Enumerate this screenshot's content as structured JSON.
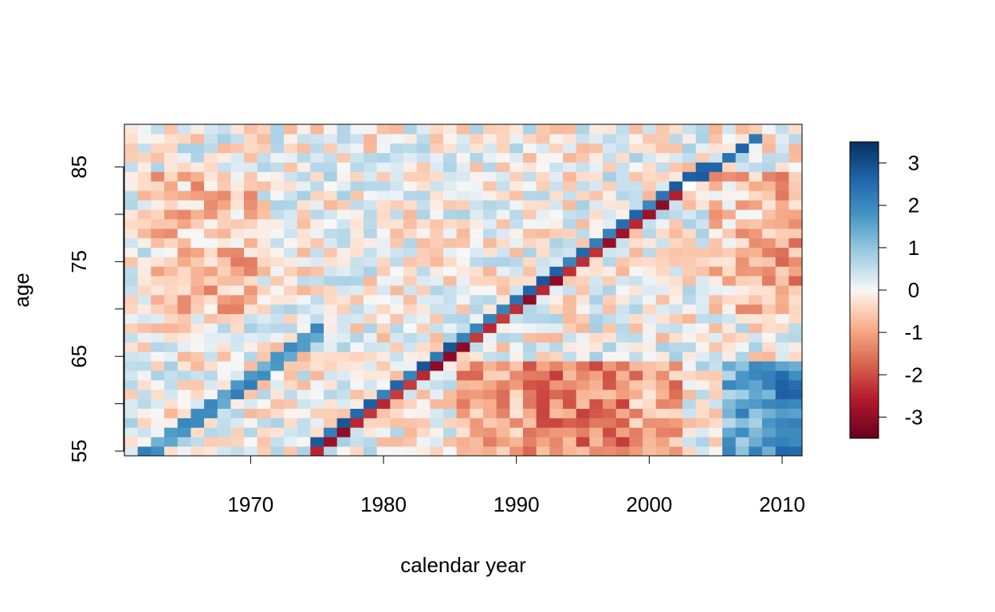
{
  "chart_data": {
    "type": "heatmap",
    "title": "",
    "xlabel": "calendar year",
    "ylabel": "age",
    "x_range": [
      1961,
      2011
    ],
    "y_range": [
      55,
      89
    ],
    "x_ticks": [
      1970,
      1980,
      1990,
      2000,
      2010
    ],
    "x_tick_labels": [
      "1970",
      "1980",
      "1990",
      "2000",
      "2010"
    ],
    "y_ticks": [
      55,
      65,
      75,
      85
    ],
    "y_tick_labels": [
      "55",
      "65",
      "75",
      "85"
    ],
    "y_minor_ticks": [
      60,
      70,
      80
    ],
    "color_scale": {
      "min": -3.5,
      "max": 3.5,
      "ticks": [
        3,
        2,
        1,
        0,
        -1,
        -2,
        -3
      ],
      "tick_labels": [
        "3",
        "2",
        "1",
        "0",
        "-1",
        "-2",
        "-3"
      ],
      "low_color": "#67001f",
      "mid_color": "#f7f7f7",
      "high_color": "#053061"
    },
    "cohort_diagonals": [
      {
        "pattern": "red/blue pair",
        "birth_year": 1920,
        "from_year": 1975,
        "to_year": 2004
      },
      {
        "pattern": "blue",
        "birth_year": 1907,
        "from_year": 1962,
        "to_year": 1975
      }
    ],
    "regions": [
      {
        "years": [
          1986,
          2002
        ],
        "ages": [
          55,
          64
        ],
        "trend": "negative"
      },
      {
        "years": [
          2006,
          2011
        ],
        "ages": [
          55,
          64
        ],
        "trend": "positive"
      },
      {
        "years": [
          1963,
          1970
        ],
        "ages": [
          70,
          84
        ],
        "trend": "negative"
      },
      {
        "years": [
          2005,
          2011
        ],
        "ages": [
          70,
          84
        ],
        "trend": "negative"
      }
    ],
    "missing_cells": [
      {
        "year": 2003,
        "age": 83
      }
    ]
  }
}
